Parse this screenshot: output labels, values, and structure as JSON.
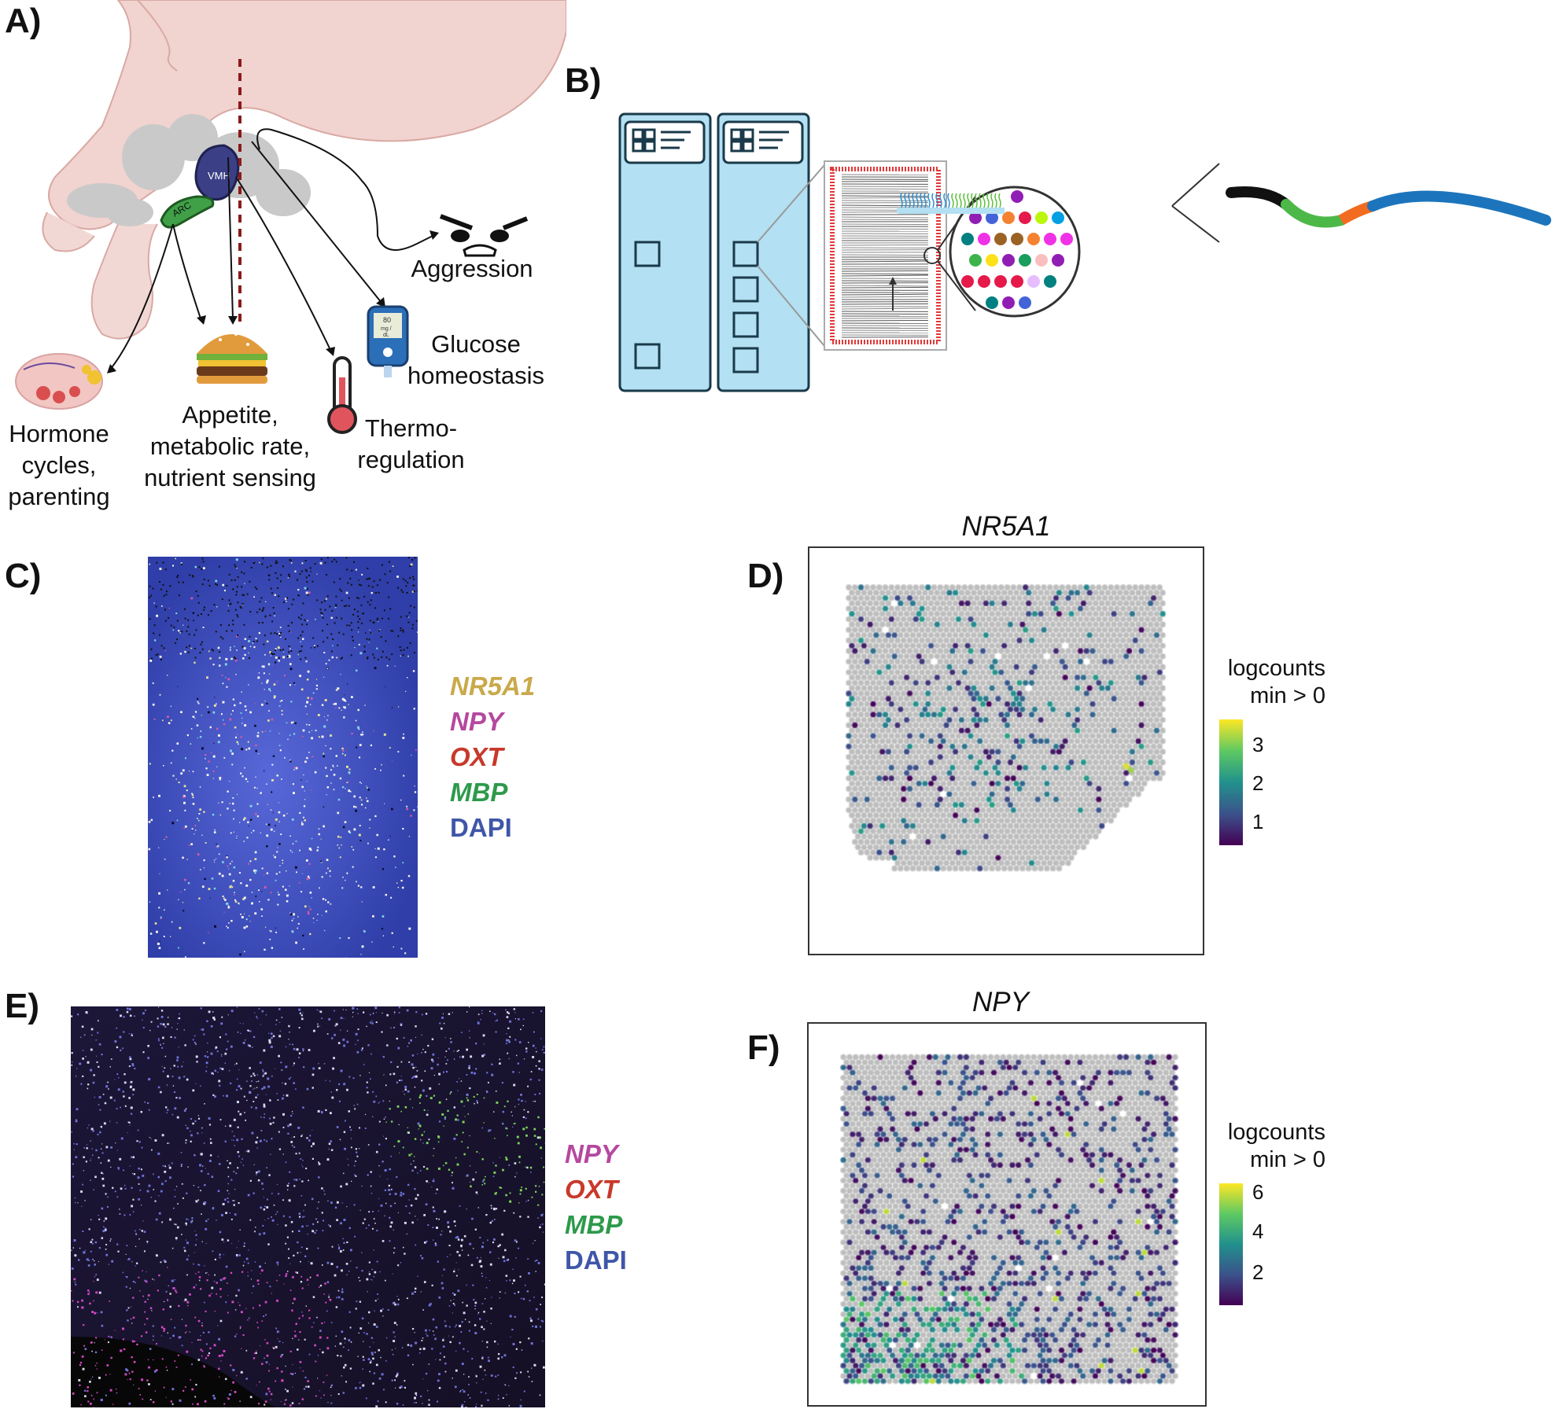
{
  "panels": {
    "a": {
      "letter": "A)",
      "vmh": "VMH",
      "arc": "ARC",
      "labels": {
        "aggression": "Aggression",
        "glucose": "Glucose\nhomeostasis",
        "hormone": "Hormone\ncycles,\nparenting",
        "appetite": "Appetite,\nmetabolic rate,\nnutrient sensing",
        "thermo": "Thermo-\nregulation"
      },
      "glucometer_text": "80\nmg /\ndL"
    },
    "b": {
      "letter": "B)"
    },
    "c": {
      "letter": "C)",
      "legend": [
        {
          "text": "NR5A1",
          "color": "#c9a94a"
        },
        {
          "text": "NPY",
          "color": "#b5489f"
        },
        {
          "text": "OXT",
          "color": "#c8392b"
        },
        {
          "text": "MBP",
          "color": "#2d9a4b"
        },
        {
          "text": "DAPI",
          "color": "#3f56a8"
        }
      ]
    },
    "d": {
      "letter": "D)",
      "title": "NR5A1",
      "colorbar": {
        "title": "logcounts\nmin > 0",
        "ticks": [
          "3",
          "2",
          "1"
        ]
      }
    },
    "e": {
      "letter": "E)",
      "legend": [
        {
          "text": "NPY",
          "color": "#b5489f"
        },
        {
          "text": "OXT",
          "color": "#c8392b"
        },
        {
          "text": "MBP",
          "color": "#2d9a4b"
        },
        {
          "text": "DAPI",
          "color": "#3f56a8"
        }
      ]
    },
    "f": {
      "letter": "F)",
      "title": "NPY",
      "colorbar": {
        "title": "logcounts\nmin > 0",
        "ticks": [
          "6",
          "4",
          "2"
        ]
      }
    }
  },
  "colors": {
    "viridis": [
      "#440154",
      "#3b528b",
      "#21918c",
      "#5ec962",
      "#fde725"
    ],
    "spot_grey": "#bdbdbd",
    "slide_blue": "#b3e0f2"
  }
}
